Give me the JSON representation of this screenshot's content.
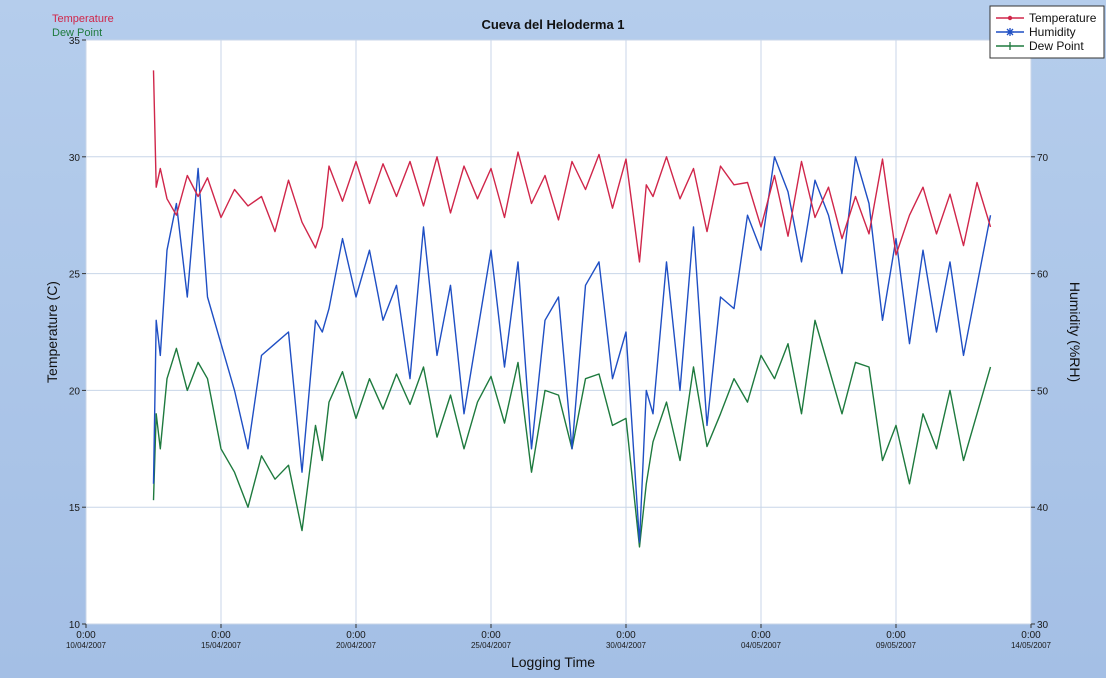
{
  "colors": {
    "temperature": "#d0264a",
    "humidity": "#1f4fc4",
    "dew_point": "#1e7a3e",
    "grid": "#c8d6e8",
    "plot_bg": "#ffffff",
    "frame_bg": "#a9c3e6"
  },
  "corner_labels": {
    "temperature": "Temperature",
    "dew_point": "Dew Point"
  },
  "chart_data": {
    "type": "line",
    "title": "Cueva del Heloderma 1",
    "xlabel": "Logging Time",
    "ylabel_left": "Temperature (C)",
    "ylabel_right": "Humidity (%RH)",
    "ylim_left": [
      10,
      35
    ],
    "ylim_right": [
      30,
      80
    ],
    "yticks_left": [
      10,
      15,
      20,
      25,
      30,
      35
    ],
    "yticks_right": [
      30,
      40,
      50,
      60,
      70
    ],
    "xlim": [
      0,
      7
    ],
    "grid": true,
    "legend_position": "top-right",
    "x_ticks": [
      {
        "time": "0:00",
        "date": "10/04/2007"
      },
      {
        "time": "0:00",
        "date": "15/04/2007"
      },
      {
        "time": "0:00",
        "date": "20/04/2007"
      },
      {
        "time": "0:00",
        "date": "25/04/2007"
      },
      {
        "time": "0:00",
        "date": "30/04/2007"
      },
      {
        "time": "0:00",
        "date": "04/05/2007"
      },
      {
        "time": "0:00",
        "date": "09/05/2007"
      },
      {
        "time": "0:00",
        "date": "14/05/2007"
      }
    ],
    "x": [
      0.5,
      0.52,
      0.55,
      0.6,
      0.67,
      0.75,
      0.83,
      0.9,
      1.0,
      1.1,
      1.2,
      1.3,
      1.4,
      1.5,
      1.6,
      1.7,
      1.75,
      1.8,
      1.9,
      2.0,
      2.1,
      2.2,
      2.3,
      2.4,
      2.5,
      2.6,
      2.7,
      2.8,
      2.9,
      3.0,
      3.1,
      3.2,
      3.3,
      3.4,
      3.5,
      3.6,
      3.7,
      3.8,
      3.9,
      4.0,
      4.1,
      4.15,
      4.2,
      4.3,
      4.4,
      4.5,
      4.6,
      4.7,
      4.8,
      4.9,
      5.0,
      5.1,
      5.2,
      5.3,
      5.4,
      5.5,
      5.6,
      5.7,
      5.8,
      5.9,
      6.0,
      6.1,
      6.2,
      6.3,
      6.4,
      6.5,
      6.6,
      6.7
    ],
    "series": [
      {
        "name": "Temperature",
        "axis": "left",
        "values": [
          33.7,
          28.7,
          29.5,
          28.2,
          27.5,
          29.2,
          28.3,
          29.1,
          27.4,
          28.6,
          27.9,
          28.3,
          26.8,
          29.0,
          27.2,
          26.1,
          27.0,
          29.6,
          28.1,
          29.8,
          28.0,
          29.7,
          28.3,
          29.8,
          27.9,
          30.0,
          27.6,
          29.6,
          28.2,
          29.5,
          27.4,
          30.2,
          28.0,
          29.2,
          27.3,
          29.8,
          28.6,
          30.1,
          27.8,
          29.9,
          25.5,
          28.8,
          28.3,
          30.0,
          28.2,
          29.5,
          26.8,
          29.6,
          28.8,
          28.9,
          27.0,
          29.2,
          26.6,
          29.8,
          27.4,
          28.7,
          26.5,
          28.3,
          26.7,
          29.9,
          25.8,
          27.5,
          28.7,
          26.7,
          28.4,
          26.2,
          28.9,
          27.0
        ]
      },
      {
        "name": "Humidity",
        "axis": "right",
        "values": [
          42.0,
          56.0,
          53.0,
          62.0,
          66.0,
          58.0,
          69.0,
          58.0,
          54.0,
          50.0,
          45.0,
          53.0,
          54.0,
          55.0,
          43.0,
          56.0,
          55.0,
          57.0,
          63.0,
          58.0,
          62.0,
          56.0,
          59.0,
          51.0,
          64.0,
          53.0,
          59.0,
          48.0,
          55.0,
          62.0,
          52.0,
          61.0,
          45.0,
          56.0,
          58.0,
          45.0,
          59.0,
          61.0,
          51.0,
          55.0,
          37.0,
          50.0,
          48.0,
          61.0,
          50.0,
          64.0,
          47.0,
          58.0,
          57.0,
          65.0,
          62.0,
          70.0,
          67.0,
          61.0,
          68.0,
          65.0,
          60.0,
          70.0,
          66.0,
          56.0,
          63.0,
          54.0,
          62.0,
          55.0,
          61.0,
          53.0,
          59.0,
          65.0
        ]
      },
      {
        "name": "Dew Point",
        "axis": "left",
        "values": [
          15.3,
          19.0,
          17.5,
          20.5,
          21.8,
          20.0,
          21.2,
          20.5,
          17.5,
          16.5,
          15.0,
          17.2,
          16.2,
          16.8,
          14.0,
          18.5,
          17.0,
          19.5,
          20.8,
          18.8,
          20.5,
          19.2,
          20.7,
          19.4,
          21.0,
          18.0,
          19.8,
          17.5,
          19.5,
          20.6,
          18.6,
          21.2,
          16.5,
          20.0,
          19.8,
          17.5,
          20.5,
          20.7,
          18.5,
          18.8,
          13.3,
          16.0,
          17.8,
          19.5,
          17.0,
          21.0,
          17.6,
          19.0,
          20.5,
          19.5,
          21.5,
          20.5,
          22.0,
          19.0,
          23.0,
          21.0,
          19.0,
          21.2,
          21.0,
          17.0,
          18.5,
          16.0,
          19.0,
          17.5,
          20.0,
          17.0,
          19.0,
          21.0
        ]
      }
    ]
  }
}
